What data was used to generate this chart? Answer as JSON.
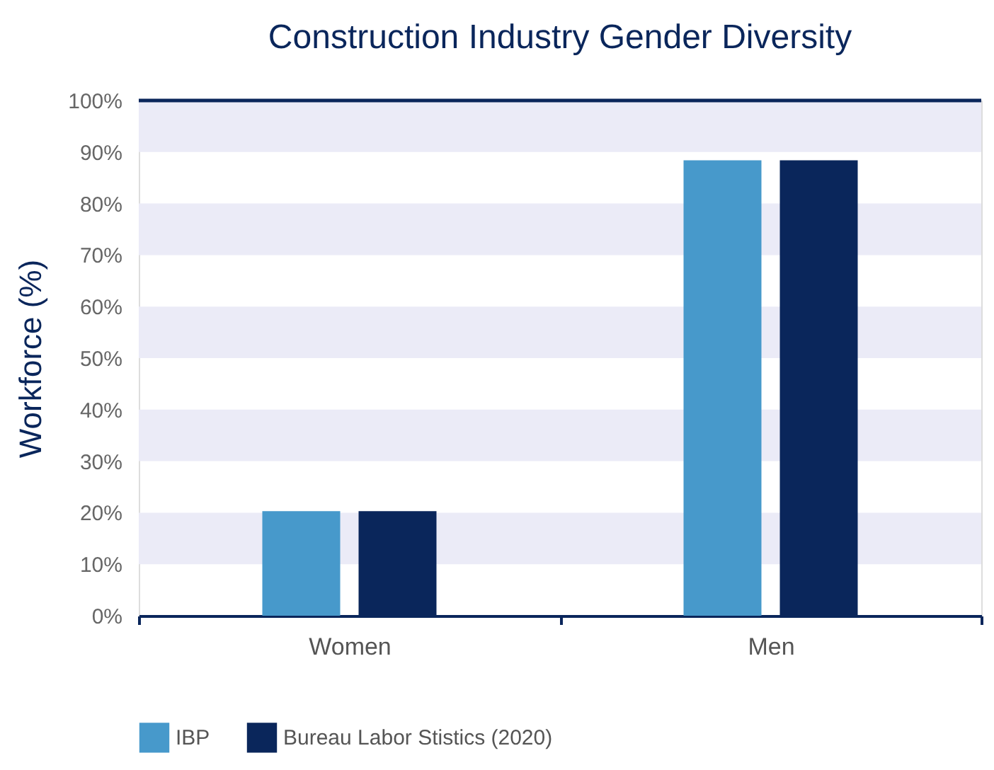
{
  "chart_data": {
    "type": "bar",
    "title": "Construction Industry Gender Diversity",
    "ylabel": "Workforce (%)",
    "categories": [
      "Women",
      "Men"
    ],
    "series": [
      {
        "name": "IBP",
        "color": "#4799cb",
        "values": [
          20.3,
          88.4
        ]
      },
      {
        "name": "Bureau Labor Stistics (2020)",
        "color": "#0a265b",
        "values": [
          20.3,
          88.4
        ]
      }
    ],
    "ylim": [
      0,
      100
    ],
    "yticks": [
      {
        "value": 0,
        "label": "0%"
      },
      {
        "value": 10,
        "label": "10%"
      },
      {
        "value": 20,
        "label": "20%"
      },
      {
        "value": 30,
        "label": "30%"
      },
      {
        "value": 40,
        "label": "40%"
      },
      {
        "value": 50,
        "label": "50%"
      },
      {
        "value": 60,
        "label": "60%"
      },
      {
        "value": 70,
        "label": "70%"
      },
      {
        "value": 80,
        "label": "80%"
      },
      {
        "value": 90,
        "label": "90%"
      },
      {
        "value": 100,
        "label": "100%"
      }
    ],
    "bands": [
      {
        "axis": "y",
        "from": 10,
        "to": 20,
        "color": "#ebebf7"
      },
      {
        "axis": "y",
        "from": 30,
        "to": 40,
        "color": "#ebebf7"
      },
      {
        "axis": "y",
        "from": 50,
        "to": 60,
        "color": "#ebebf7"
      },
      {
        "axis": "y",
        "from": 70,
        "to": 80,
        "color": "#ebebf7"
      },
      {
        "axis": "y",
        "from": 90,
        "to": 100,
        "color": "#ebebf7"
      }
    ],
    "ref_lines": [
      {
        "axis": "y",
        "value": 100,
        "color": "#0a265b",
        "line_style": "solid"
      }
    ],
    "grid": false,
    "legend": "bottom"
  }
}
